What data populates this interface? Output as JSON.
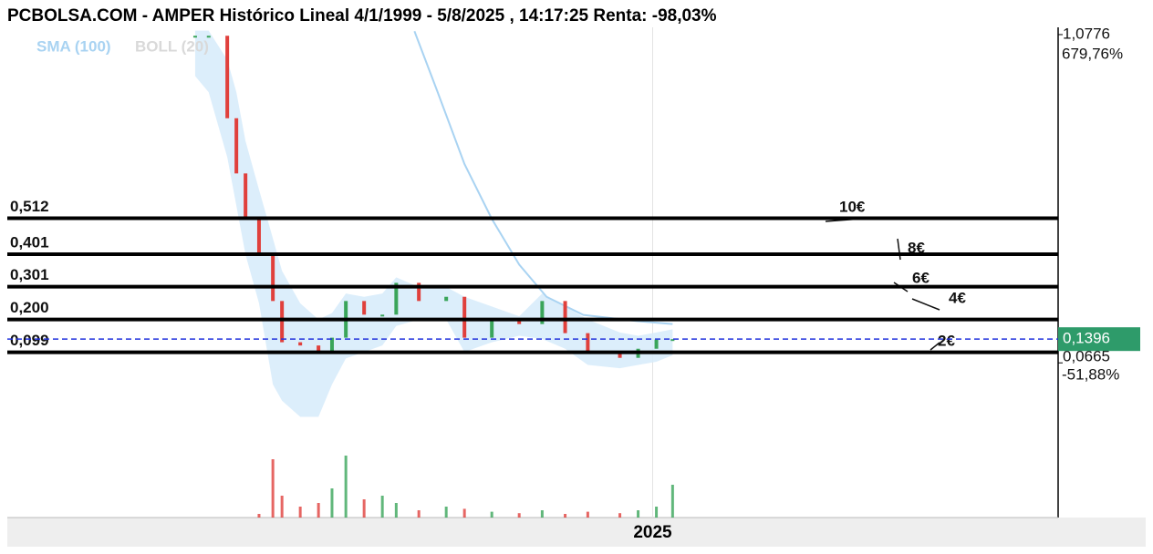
{
  "chart_data": {
    "type": "candlestick",
    "title": "PCBOLSA.COM - AMPER Histórico Lineal 4/1/1999 - 5/8/2025 , 14:17:25 Renta: -98,03%",
    "x": [
      2011.46,
      2011.86,
      2012.41,
      2012.68,
      2012.95,
      2013.35,
      2013.76,
      2014.03,
      2014.57,
      2015.11,
      2015.51,
      2015.92,
      2016.46,
      2017.0,
      2017.41,
      2018.08,
      2018.89,
      2019.43,
      2020.24,
      2021.05,
      2021.73,
      2022.41,
      2023.08,
      2024.03,
      2024.57,
      2025.11,
      2025.59
    ],
    "series": [
      {
        "name": "AMPER",
        "up_color": "#3aa55a",
        "down_color": "#e0403c",
        "values": [
          1.074,
          1.074,
          0.82,
          0.65,
          0.51,
          0.398,
          0.257,
          0.13,
          0.12,
          0.1,
          0.144,
          0.257,
          0.215,
          0.215,
          0.313,
          0.257,
          0.27,
          0.144,
          0.2,
          0.186,
          0.257,
          0.158,
          0.102,
          0.082,
          0.11,
          0.138,
          0.1396
        ]
      },
      {
        "name": "SMA (100)",
        "color": "#a9d3f2",
        "x": [
          2017.95,
          2018.62,
          2019.43,
          2020.24,
          2021.05,
          2021.86,
          2022.95,
          2024.57,
          2025.59
        ],
        "values": [
          1.088,
          0.905,
          0.679,
          0.51,
          0.369,
          0.27,
          0.214,
          0.195,
          0.186
        ]
      },
      {
        "name": "BOLL (20)",
        "color": "#d9d9d9",
        "band_color": "#d6ebfa",
        "upper": [
          1.09,
          1.09,
          1.0,
          0.9,
          0.75,
          0.6,
          0.45,
          0.35,
          0.25,
          0.2,
          0.22,
          0.28,
          0.27,
          0.28,
          0.33,
          0.3,
          0.3,
          0.27,
          0.24,
          0.21,
          0.28,
          0.24,
          0.2,
          0.16,
          0.15,
          0.16,
          0.17
        ],
        "lower": [
          0.95,
          0.9,
          0.7,
          0.55,
          0.4,
          0.25,
          0.0,
          -0.05,
          -0.1,
          -0.1,
          0.0,
          0.08,
          0.1,
          0.12,
          0.18,
          0.2,
          0.2,
          0.1,
          0.13,
          0.15,
          0.14,
          0.11,
          0.06,
          0.05,
          0.06,
          0.07,
          0.09
        ]
      }
    ],
    "volume": {
      "ylim": [
        0,
        100
      ],
      "values": [
        0,
        0,
        0,
        0,
        0,
        5,
        80,
        30,
        15,
        20,
        40,
        85,
        25,
        30,
        20,
        10,
        15,
        12,
        8,
        6,
        10,
        5,
        8,
        6,
        10,
        15,
        45
      ]
    },
    "xlim": [
      2005.9,
      2037
    ],
    "xticks": [
      {
        "value": 2025,
        "label": "2025"
      }
    ],
    "ylim": [
      -0.41,
      1.1
    ],
    "yticks": [
      {
        "value": 1.0776,
        "label": "1,0776"
      },
      {
        "value": 0.0665,
        "label": "0,0665"
      }
    ],
    "pct_labels": [
      {
        "value": 679.76,
        "label": "679,76%"
      },
      {
        "value": -51.88,
        "label": "-51,88%"
      }
    ],
    "last_price": {
      "value": 0.1396,
      "label": "0,1396",
      "color": "#2e9b6a"
    },
    "levels": [
      {
        "value": 0.512,
        "label": "0,512",
        "target": "10€"
      },
      {
        "value": 0.401,
        "label": "0,401",
        "target": "8€"
      },
      {
        "value": 0.301,
        "label": "0,301",
        "target": "6€"
      },
      {
        "value": 0.2,
        "label": "0,200",
        "target": "4€"
      },
      {
        "value": 0.099,
        "label": "0,099",
        "target": "2€"
      }
    ]
  }
}
